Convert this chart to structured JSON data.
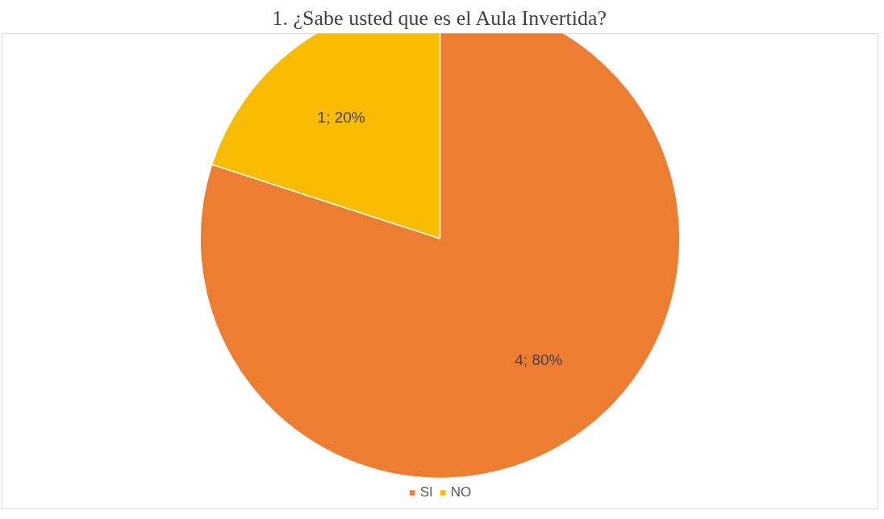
{
  "chart_data": {
    "type": "pie",
    "title": "1. ¿Sabe usted que es el Aula Invertida?",
    "categories": [
      "SI",
      "NO"
    ],
    "values": [
      4,
      1
    ],
    "colors": [
      "#ed7d31",
      "#f9bc00"
    ],
    "value_labels": [
      "4; 80%",
      "1; 20%"
    ],
    "legend": "bottom"
  }
}
